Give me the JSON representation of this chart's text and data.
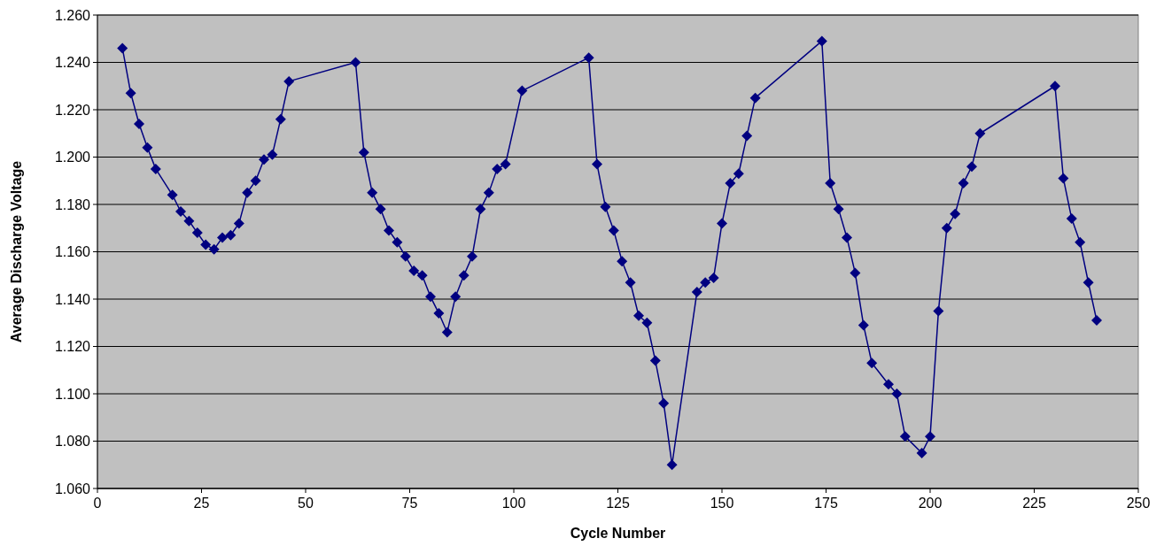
{
  "chart_data": {
    "type": "line",
    "xlabel": "Cycle Number",
    "ylabel": "Average Discharge Voltage",
    "marker": "diamond",
    "line_style": "solid",
    "grid": "y",
    "xlim": [
      0,
      250
    ],
    "xticks": [
      0,
      25,
      50,
      75,
      100,
      125,
      150,
      175,
      200,
      225,
      250
    ],
    "ylim": [
      1.06,
      1.26
    ],
    "yticks": [
      {
        "value": 1.06,
        "label": "1.060"
      },
      {
        "value": 1.08,
        "label": "1.080"
      },
      {
        "value": 1.1,
        "label": "1.100"
      },
      {
        "value": 1.12,
        "label": "1.120"
      },
      {
        "value": 1.14,
        "label": "1.140"
      },
      {
        "value": 1.16,
        "label": "1.160"
      },
      {
        "value": 1.18,
        "label": "1.180"
      },
      {
        "value": 1.2,
        "label": "1.200"
      },
      {
        "value": 1.22,
        "label": "1.220"
      },
      {
        "value": 1.24,
        "label": "1.240"
      },
      {
        "value": 1.26,
        "label": "1.260"
      }
    ],
    "x": [
      6,
      8,
      10,
      12,
      14,
      18,
      20,
      22,
      24,
      26,
      28,
      30,
      32,
      34,
      36,
      38,
      40,
      42,
      44,
      46,
      62,
      64,
      66,
      68,
      70,
      72,
      74,
      76,
      78,
      80,
      82,
      84,
      86,
      88,
      90,
      92,
      94,
      96,
      98,
      102,
      118,
      120,
      122,
      124,
      126,
      128,
      130,
      132,
      134,
      136,
      138,
      144,
      146,
      148,
      150,
      152,
      154,
      156,
      158,
      174,
      176,
      178,
      180,
      182,
      184,
      186,
      190,
      192,
      194,
      198,
      200,
      202,
      204,
      206,
      208,
      210,
      212,
      230,
      232,
      234,
      236,
      238,
      240
    ],
    "series": [
      {
        "color": "#000080",
        "values": [
          1.246,
          1.227,
          1.214,
          1.204,
          1.195,
          1.184,
          1.177,
          1.173,
          1.168,
          1.163,
          1.161,
          1.166,
          1.167,
          1.172,
          1.185,
          1.19,
          1.199,
          1.201,
          1.216,
          1.232,
          1.24,
          1.202,
          1.185,
          1.178,
          1.169,
          1.164,
          1.158,
          1.152,
          1.15,
          1.141,
          1.134,
          1.126,
          1.141,
          1.15,
          1.158,
          1.178,
          1.185,
          1.195,
          1.197,
          1.228,
          1.242,
          1.197,
          1.179,
          1.169,
          1.156,
          1.147,
          1.133,
          1.13,
          1.114,
          1.096,
          1.07,
          1.143,
          1.147,
          1.149,
          1.172,
          1.189,
          1.193,
          1.209,
          1.225,
          1.249,
          1.189,
          1.178,
          1.166,
          1.151,
          1.129,
          1.113,
          1.104,
          1.1,
          1.082,
          1.075,
          1.082,
          1.135,
          1.17,
          1.176,
          1.189,
          1.196,
          1.21,
          1.23,
          1.191,
          1.174,
          1.164,
          1.147,
          1.131
        ]
      }
    ]
  }
}
